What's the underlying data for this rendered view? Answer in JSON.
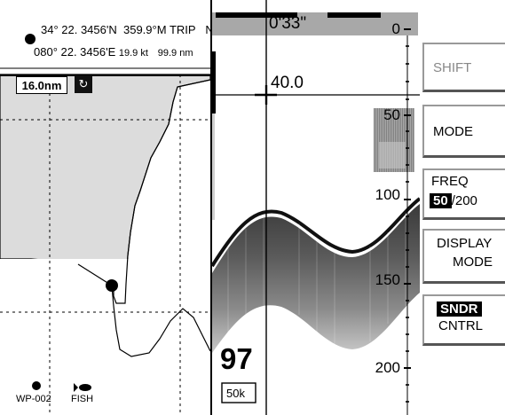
{
  "plotter": {
    "position_lat": "34° 22. 3456'N",
    "position_lon": "080° 22. 3456'E",
    "heading": "359.9°M",
    "speed": "19.9 kt",
    "trip_label": "TRIP",
    "trip_value": "99.9 nm",
    "orientation": "NU",
    "range": "16.0nm",
    "mode_icon": "course-up-icon",
    "waypoint_label": "WP-002",
    "fish_label": "FISH"
  },
  "sounder": {
    "elapsed_time": "0'33\"",
    "vrm_depth": "40.0",
    "current_depth": "97",
    "frequency_tag": "50k",
    "depth_scale": [
      "0",
      "50",
      "100",
      "150",
      "200"
    ]
  },
  "softkeys": {
    "shift": "SHIFT",
    "mode": "MODE",
    "freq_title": "FREQ",
    "freq_selected": "50",
    "freq_other": "/200",
    "display_line1": "DISPLAY",
    "display_line2": "MODE",
    "sndr_line1": "SNDR",
    "sndr_line2": "CNTRL"
  },
  "colors": {
    "land": "#dcdcdc",
    "echo_dark": "#3a3a3a",
    "echo_light": "#a0a0a0",
    "header_band": "#a8a8a8"
  }
}
